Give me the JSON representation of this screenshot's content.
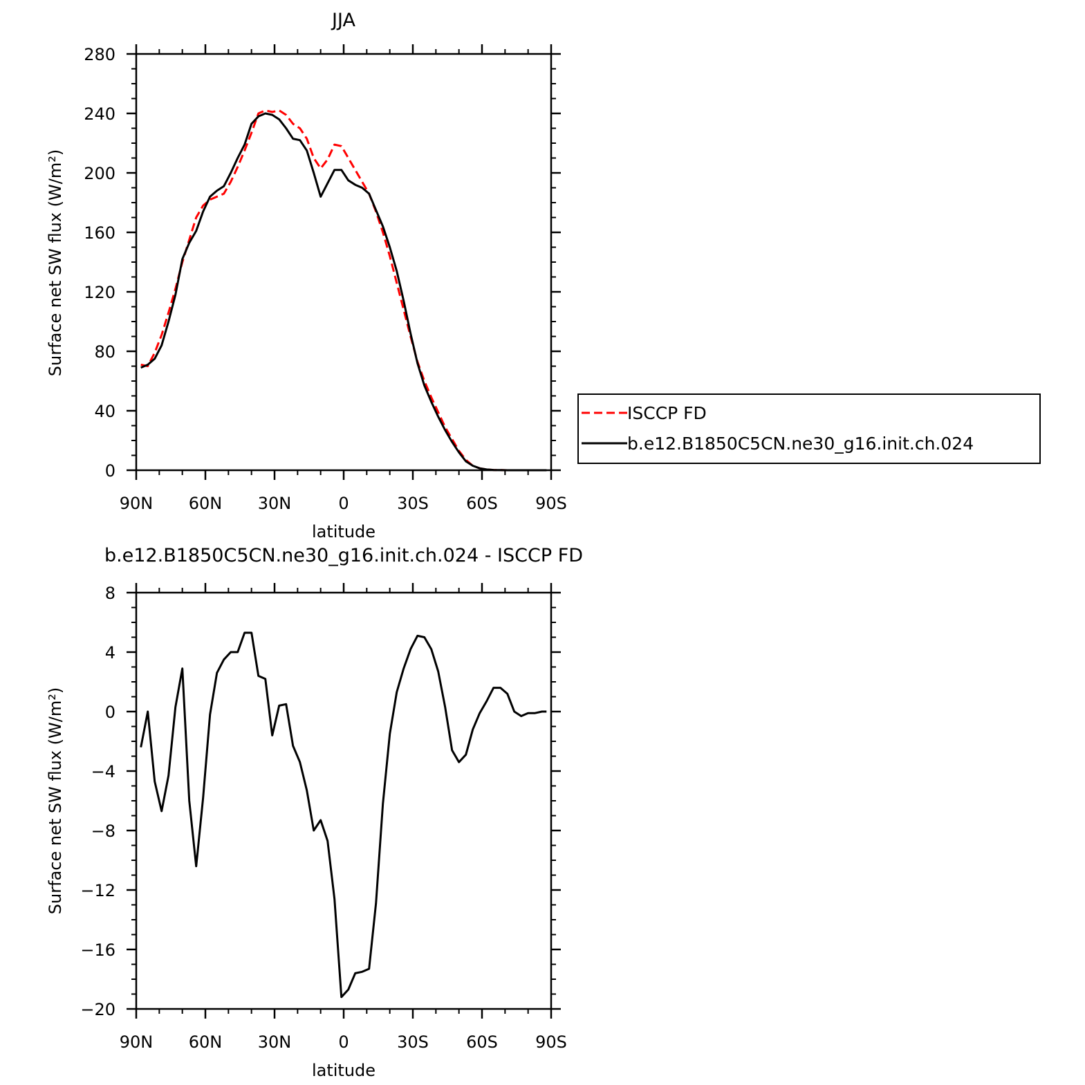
{
  "chart_data": [
    {
      "type": "line",
      "title": "JJA",
      "xlabel": "latitude",
      "ylabel": "Surface net SW flux (W/m²)",
      "ylim": [
        0,
        280
      ],
      "yticks": [
        0,
        40,
        80,
        120,
        160,
        200,
        240,
        280
      ],
      "xlim": [
        90,
        -90
      ],
      "xticks": [
        90,
        60,
        30,
        0,
        -30,
        -60,
        -90
      ],
      "xtick_labels": [
        "90N",
        "60N",
        "30N",
        "0",
        "30S",
        "60S",
        "90S"
      ],
      "legend_position": "right",
      "x": [
        88,
        85,
        82,
        79,
        76,
        73,
        70,
        67,
        64,
        61,
        58,
        55,
        52,
        49,
        46,
        43,
        40,
        37,
        34,
        31,
        28,
        25,
        22,
        19,
        16,
        13,
        10,
        7,
        4,
        1,
        -2,
        -5,
        -8,
        -11,
        -14,
        -17,
        -20,
        -23,
        -26,
        -29,
        -32,
        -35,
        -38,
        -41,
        -44,
        -47,
        -50,
        -53,
        -56,
        -59,
        -62,
        -65,
        -68,
        -71,
        -74,
        -77,
        -80,
        -83,
        -86,
        -88
      ],
      "series": [
        {
          "name": "ISCCP FD",
          "color": "#ff0000",
          "dash": "dashed",
          "values": [
            71,
            70,
            79,
            91,
            106,
            122,
            140,
            155,
            170,
            178,
            182,
            184,
            186,
            194,
            204,
            215,
            227,
            240,
            242,
            241,
            242,
            239,
            233,
            230,
            223,
            210,
            203,
            209,
            219,
            218,
            210,
            202,
            194,
            186,
            174,
            160,
            144,
            126,
            108,
            90,
            73,
            60,
            49,
            39,
            29,
            21,
            13,
            7,
            3,
            1.3,
            0.5,
            0.2,
            0.1,
            0,
            0,
            0,
            0,
            0,
            0,
            0
          ]
        },
        {
          "name": "b.e12.B1850C5CN.ne30_g16.init.ch.024",
          "color": "#000000",
          "dash": "solid",
          "values": [
            69,
            71,
            75,
            84,
            100,
            118,
            142,
            153,
            161,
            174,
            184,
            188,
            191,
            200,
            210,
            219,
            233,
            238,
            240,
            239,
            236,
            230,
            223,
            222,
            215,
            200,
            184,
            193,
            202,
            202,
            195,
            192,
            190,
            186,
            175,
            164,
            150,
            134,
            114,
            92,
            72,
            57,
            46,
            36,
            27,
            19,
            12,
            6,
            3,
            1.3,
            0.5,
            0.2,
            0.1,
            0,
            0,
            0,
            0,
            0,
            0,
            0
          ]
        }
      ]
    },
    {
      "type": "line",
      "title": "b.e12.B1850C5CN.ne30_g16.init.ch.024 - ISCCP FD",
      "xlabel": "latitude",
      "ylabel": "Surface net SW flux (W/m²)",
      "ylim": [
        -20,
        8
      ],
      "yticks": [
        -20,
        -16,
        -12,
        -8,
        -4,
        0,
        4,
        8
      ],
      "xlim": [
        90,
        -90
      ],
      "xticks": [
        90,
        60,
        30,
        0,
        -30,
        -60,
        -90
      ],
      "xtick_labels": [
        "90N",
        "60N",
        "30N",
        "0",
        "30S",
        "60S",
        "90S"
      ],
      "x": [
        88,
        85,
        82,
        79,
        76,
        73,
        70,
        67,
        64,
        61,
        58,
        55,
        52,
        49,
        46,
        43,
        40,
        37,
        34,
        31,
        28,
        25,
        22,
        19,
        16,
        13,
        10,
        7,
        4,
        1,
        -2,
        -5,
        -8,
        -11,
        -14,
        -17,
        -20,
        -23,
        -26,
        -29,
        -32,
        -35,
        -38,
        -41,
        -44,
        -47,
        -50,
        -53,
        -56,
        -59,
        -62,
        -65,
        -68,
        -71,
        -74,
        -77,
        -80,
        -83,
        -86,
        -88
      ],
      "series": [
        {
          "color": "#000000",
          "values": [
            -2.4,
            0,
            -4.7,
            -6.7,
            -4.3,
            0.3,
            2.9,
            -6,
            -10.4,
            -5.8,
            -0.2,
            2.6,
            3.5,
            4,
            4,
            5.3,
            5.3,
            2.4,
            2.2,
            -1.6,
            0.4,
            0.5,
            -2.3,
            -3.4,
            -5.3,
            -8,
            -7.3,
            -8.7,
            -12.6,
            -19.2,
            -18.7,
            -17.6,
            -17.5,
            -17.3,
            -12.9,
            -6.2,
            -1.5,
            1.3,
            2.9,
            4.2,
            5.1,
            5,
            4.2,
            2.7,
            0.3,
            -2.6,
            -3.4,
            -2.9,
            -1.2,
            -0.1,
            0.7,
            1.6,
            1.6,
            1.2,
            0,
            -0.3,
            -0.1,
            -0.1,
            0,
            0
          ]
        }
      ]
    }
  ]
}
